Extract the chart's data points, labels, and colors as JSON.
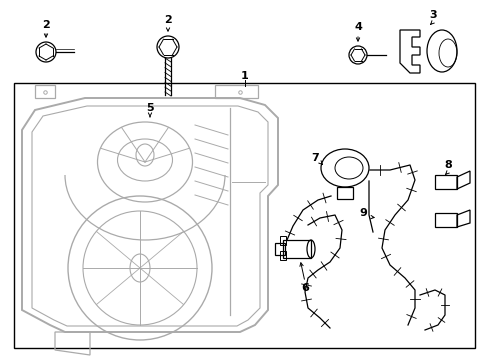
{
  "bg_color": "#ffffff",
  "line_color": "#000000",
  "gray": "#aaaaaa",
  "fig_width": 4.89,
  "fig_height": 3.6,
  "dpi": 100
}
